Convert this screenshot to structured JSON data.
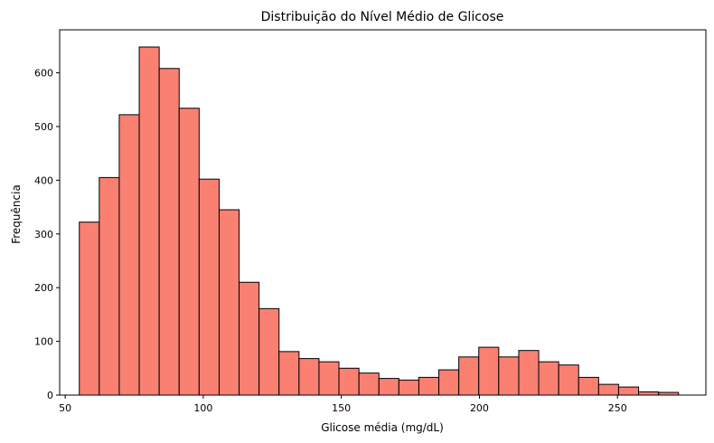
{
  "chart_data": {
    "type": "bar",
    "subtype": "histogram",
    "title": "Distribuição do Nível Médio de Glicose",
    "xlabel": "Glicose média (mg/dL)",
    "ylabel": "Frequência",
    "xlim": [
      48,
      282
    ],
    "ylim": [
      0,
      680
    ],
    "xticks": [
      50,
      100,
      150,
      200,
      250
    ],
    "yticks": [
      0,
      100,
      200,
      300,
      400,
      500,
      600
    ],
    "grid": false,
    "bin_edges": [
      55.12,
      62.35,
      69.58,
      76.82,
      84.05,
      91.28,
      98.51,
      105.75,
      112.98,
      120.21,
      127.44,
      134.68,
      141.91,
      149.14,
      156.38,
      163.61,
      170.84,
      178.07,
      185.31,
      192.54,
      199.77,
      207.0,
      214.24,
      221.47,
      228.7,
      235.94,
      243.17,
      250.4,
      257.63,
      264.87,
      272.1
    ],
    "values": [
      322,
      405,
      522,
      648,
      608,
      534,
      402,
      345,
      210,
      161,
      81,
      68,
      62,
      50,
      41,
      31,
      28,
      33,
      47,
      71,
      89,
      71,
      83,
      62,
      56,
      33,
      20,
      15,
      6,
      5
    ],
    "bar_color": "#fa8072",
    "edge_color": "#000000"
  }
}
